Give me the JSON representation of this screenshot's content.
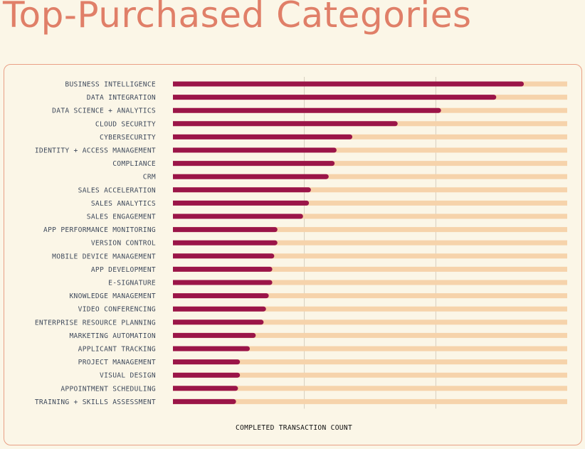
{
  "page": {
    "title": "Top-Purchased Categories"
  },
  "chart_data": {
    "type": "bar",
    "orientation": "horizontal",
    "title": "Top-Purchased Categories",
    "xlabel": "COMPLETED TRANSACTION COUNT",
    "ylabel": "",
    "xlim": [
      0,
      100
    ],
    "x_ticks_shown": false,
    "grid": "vertical",
    "colors": {
      "bar": "#9b1548",
      "track": "#f6d3ab",
      "grid": "#cfc6b4",
      "title": "#e07f68",
      "border": "#e9a086"
    },
    "categories": [
      "BUSINESS INTELLIGENCE",
      "DATA INTEGRATION",
      "DATA SCIENCE + ANALYTICS",
      "CLOUD SECURITY",
      "CYBERSECURITY",
      "IDENTITY + ACCESS MANAGEMENT",
      "COMPLIANCE",
      "CRM",
      "SALES ACCELERATION",
      "SALES ANALYTICS",
      "SALES ENGAGEMENT",
      "APP PERFORMANCE MONITORING",
      "VERSION CONTROL",
      "MOBILE DEVICE MANAGEMENT",
      "APP DEVELOPMENT",
      "E-SIGNATURE",
      "KNOWLEDGE MANAGEMENT",
      "VIDEO CONFERENCING",
      "ENTERPRISE RESOURCE PLANNING",
      "MARKETING AUTOMATION",
      "APPLICANT TRACKING",
      "PROJECT MANAGEMENT",
      "VISUAL DESIGN",
      "APPOINTMENT SCHEDULING",
      "TRAINING + SKILLS ASSESSMENT"
    ],
    "values": [
      89,
      82,
      68,
      57,
      45.5,
      41.5,
      41,
      39.5,
      35,
      34.5,
      33,
      26.5,
      26.5,
      25.7,
      25.2,
      25.2,
      24.3,
      23.6,
      23,
      21,
      19.5,
      17,
      17,
      16.5,
      16
    ]
  }
}
